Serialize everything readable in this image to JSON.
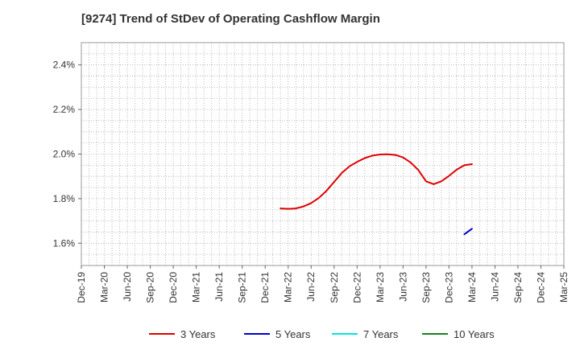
{
  "chart_data": {
    "type": "line",
    "title": "[9274]  Trend of StDev of Operating Cashflow Margin",
    "xlabel": "",
    "ylabel": "",
    "x_ticks": [
      "Dec-19",
      "Mar-20",
      "Jun-20",
      "Sep-20",
      "Dec-20",
      "Mar-21",
      "Jun-21",
      "Sep-21",
      "Dec-21",
      "Mar-22",
      "Jun-22",
      "Sep-22",
      "Dec-22",
      "Mar-23",
      "Jun-23",
      "Sep-23",
      "Dec-23",
      "Mar-24",
      "Jun-24",
      "Sep-24",
      "Dec-24",
      "Mar-25"
    ],
    "y_ticks": [
      1.6,
      1.8,
      2.0,
      2.2,
      2.4
    ],
    "y_tick_labels": [
      "1.6%",
      "1.8%",
      "2.0%",
      "2.2%",
      "2.4%"
    ],
    "ylim": [
      1.5,
      2.5
    ],
    "grid": true,
    "legend_position": "bottom",
    "series": [
      {
        "name": "3 Years",
        "color": "#e00000",
        "x": [
          "Feb-22",
          "Mar-22",
          "Apr-22",
          "May-22",
          "Jun-22",
          "Jul-22",
          "Aug-22",
          "Sep-22",
          "Oct-22",
          "Nov-22",
          "Dec-22",
          "Jan-23",
          "Feb-23",
          "Mar-23",
          "Apr-23",
          "May-23",
          "Jun-23",
          "Jul-23",
          "Aug-23",
          "Sep-23",
          "Oct-23",
          "Nov-23",
          "Dec-23",
          "Jan-24",
          "Feb-24",
          "Mar-24"
        ],
        "values": [
          1.756,
          1.754,
          1.756,
          1.765,
          1.78,
          1.803,
          1.835,
          1.875,
          1.915,
          1.945,
          1.965,
          1.982,
          1.993,
          1.998,
          1.999,
          1.996,
          1.985,
          1.962,
          1.928,
          1.878,
          1.865,
          1.878,
          1.902,
          1.93,
          1.95,
          1.955
        ]
      },
      {
        "name": "5 Years",
        "color": "#0000cc",
        "x": [
          "Feb-24",
          "Mar-24"
        ],
        "values": [
          1.64,
          1.665
        ]
      },
      {
        "name": "7 Years",
        "color": "#00e5e5",
        "x": [],
        "values": []
      },
      {
        "name": "10 Years",
        "color": "#1a7f1a",
        "x": [],
        "values": []
      }
    ]
  }
}
